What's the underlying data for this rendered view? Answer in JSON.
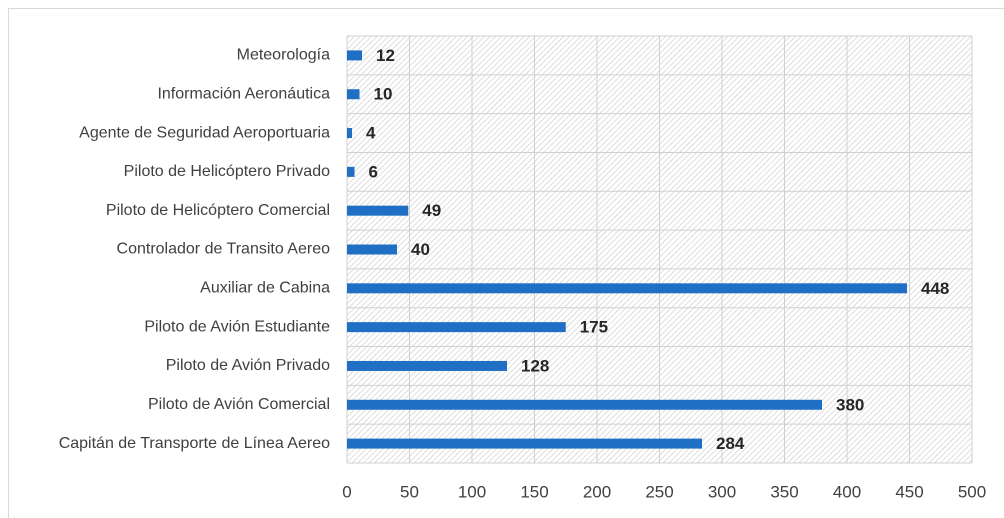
{
  "chart_data": {
    "type": "barh",
    "categories": [
      "Meteorología",
      "Información Aeronáutica",
      "Agente de Seguridad Aeroportuaria",
      "Piloto de Helicóptero Privado",
      "Piloto de Helicóptero Comercial",
      "Controlador de Transito Aereo",
      "Auxiliar de Cabina",
      "Piloto de Avión Estudiante",
      "Piloto de Avión Privado",
      "Piloto de Avión Comercial",
      "Capitán de Transporte de Línea Aereo"
    ],
    "values": [
      12,
      10,
      4,
      6,
      49,
      40,
      448,
      175,
      128,
      380,
      284
    ],
    "color": "#1f6fc5",
    "xlim": [
      0,
      500
    ],
    "xticks": [
      0,
      50,
      100,
      150,
      200,
      250,
      300,
      350,
      400,
      450,
      500
    ],
    "grid": true
  }
}
